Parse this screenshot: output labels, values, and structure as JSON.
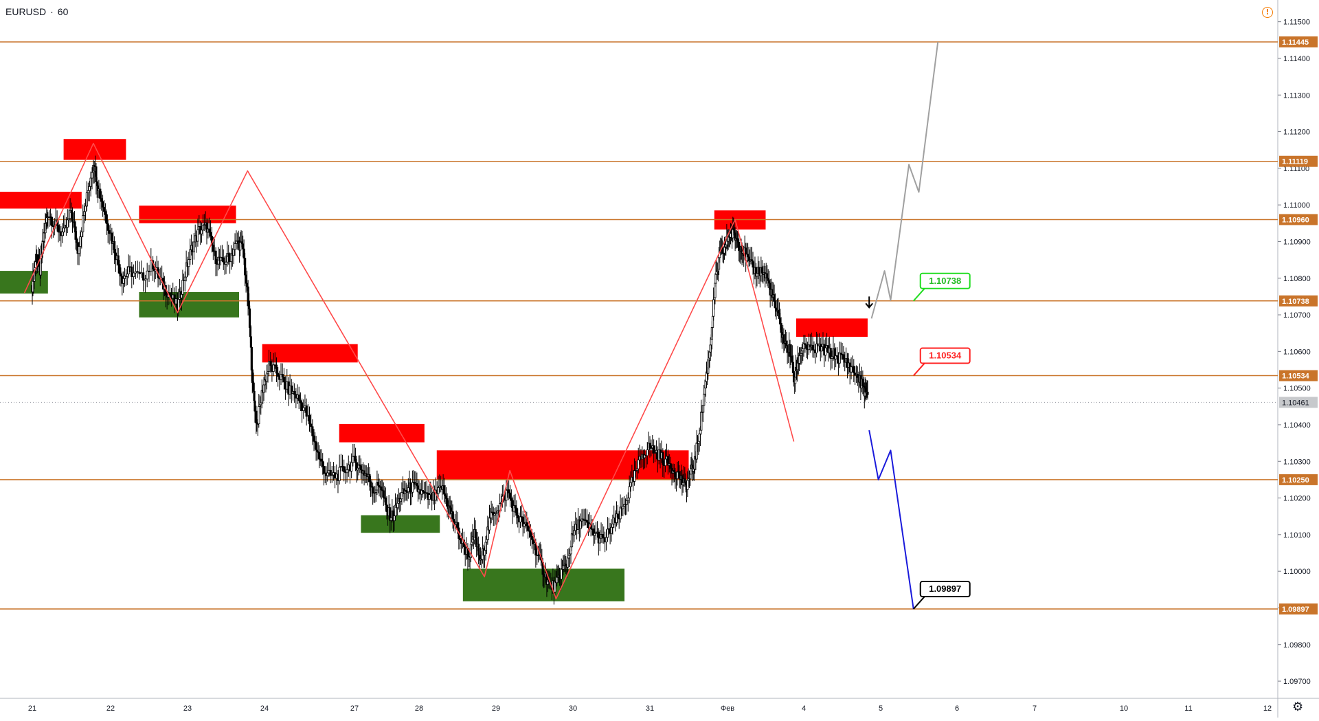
{
  "symbol": {
    "pair": "EURUSD",
    "interval": "60",
    "separator": "·"
  },
  "colors": {
    "level": "#c9742a",
    "level_label_bg": "#c9742a",
    "supply": "#ff0000",
    "demand": "#38761d",
    "zigzag": "#ff4a4a",
    "bull_path": "#a0a0a0",
    "bear_path": "#1a1adb",
    "candle": "#000000",
    "current_price_bg": "#c7c9cc"
  },
  "chart_data": {
    "type": "candlestick",
    "title": "",
    "xlabel": "",
    "ylabel": "",
    "ylim": [
      1.0965,
      1.1155
    ],
    "grid": false,
    "price_ticks": [
      "1.11500",
      "1.11400",
      "1.11300",
      "1.11200",
      "1.11100",
      "1.11000",
      "1.10900",
      "1.10800",
      "1.10700",
      "1.10600",
      "1.10500",
      "1.10400",
      "1.10300",
      "1.10200",
      "1.10100",
      "1.10000",
      "1.09900",
      "1.09800",
      "1.09700"
    ],
    "time_ticks": [
      {
        "label": "21",
        "day": 0.0
      },
      {
        "label": "22",
        "day": 1.0
      },
      {
        "label": "23",
        "day": 2.0
      },
      {
        "label": "24",
        "day": 3.0
      },
      {
        "label": "27",
        "day": 4.0
      },
      {
        "label": "28",
        "day": 5.0
      },
      {
        "label": "29",
        "day": 6.0
      },
      {
        "label": "30",
        "day": 7.0
      },
      {
        "label": "31",
        "day": 8.0
      },
      {
        "label": "Фев",
        "day": 9.0
      },
      {
        "label": "4",
        "day": 10.0
      },
      {
        "label": "5",
        "day": 11.0
      },
      {
        "label": "6",
        "day": 12.0
      },
      {
        "label": "7",
        "day": 13.0
      },
      {
        "label": "10",
        "day": 14.0
      },
      {
        "label": "11",
        "day": 15.0
      },
      {
        "label": "12",
        "day": 16.0
      }
    ],
    "levels": [
      {
        "price": 1.11445,
        "label": "1.11445"
      },
      {
        "price": 1.11119,
        "label": "1.11119"
      },
      {
        "price": 1.1096,
        "label": "1.10960"
      },
      {
        "price": 1.10738,
        "label": "1.10738"
      },
      {
        "price": 1.10534,
        "label": "1.10534"
      },
      {
        "price": 1.1025,
        "label": "1.10250"
      },
      {
        "price": 1.09897,
        "label": "1.09897"
      }
    ],
    "current_price": {
      "price": 1.10461,
      "label": "1.10461"
    },
    "supply_zones": [
      {
        "day0": -0.45,
        "day1": 0.63,
        "p0": 1.1099,
        "p1": 1.11036
      },
      {
        "day0": 0.4,
        "day1": 1.2,
        "p0": 1.11123,
        "p1": 1.1118
      },
      {
        "day0": 1.37,
        "day1": 2.63,
        "p0": 1.1095,
        "p1": 1.10998
      },
      {
        "day0": 2.97,
        "day1": 4.05,
        "p0": 1.1057,
        "p1": 1.1062
      },
      {
        "day0": 3.83,
        "day1": 5.07,
        "p0": 1.10352,
        "p1": 1.10402
      },
      {
        "day0": 5.23,
        "day1": 8.5,
        "p0": 1.1025,
        "p1": 1.1033
      },
      {
        "day0": 8.83,
        "day1": 9.5,
        "p0": 1.10933,
        "p1": 1.10985
      },
      {
        "day0": 9.9,
        "day1": 10.83,
        "p0": 1.1064,
        "p1": 1.1069
      }
    ],
    "demand_zones": [
      {
        "day0": -0.45,
        "day1": 0.2,
        "p0": 1.10758,
        "p1": 1.1082
      },
      {
        "day0": 1.37,
        "day1": 2.67,
        "p0": 1.10693,
        "p1": 1.10762
      },
      {
        "day0": 4.1,
        "day1": 5.27,
        "p0": 1.10105,
        "p1": 1.10153
      },
      {
        "day0": 5.57,
        "day1": 7.67,
        "p0": 1.09918,
        "p1": 1.10007
      }
    ],
    "zigzag": [
      {
        "day": -0.1,
        "price": 1.1076
      },
      {
        "day": 0.78,
        "price": 1.11168
      },
      {
        "day": 1.87,
        "price": 1.10706
      },
      {
        "day": 2.78,
        "price": 1.11093
      },
      {
        "day": 5.85,
        "price": 1.09985
      },
      {
        "day": 6.18,
        "price": 1.10275
      },
      {
        "day": 6.78,
        "price": 1.09925
      },
      {
        "day": 9.1,
        "price": 1.1096
      },
      {
        "day": 9.87,
        "price": 1.10354
      }
    ],
    "bullish_projection": [
      {
        "day": 10.88,
        "price": 1.1069
      },
      {
        "day": 11.05,
        "price": 1.1082
      },
      {
        "day": 11.13,
        "price": 1.1074
      },
      {
        "day": 11.37,
        "price": 1.1111
      },
      {
        "day": 11.5,
        "price": 1.11035
      },
      {
        "day": 11.75,
        "price": 1.11445
      }
    ],
    "bearish_projection": [
      {
        "day": 10.85,
        "price": 1.10385
      },
      {
        "day": 10.97,
        "price": 1.1025
      },
      {
        "day": 11.13,
        "price": 1.1033
      },
      {
        "day": 11.43,
        "price": 1.09897
      }
    ],
    "callouts": [
      {
        "label": "1.10738",
        "price": 1.10738,
        "day": 11.43,
        "color": "#22dd22"
      },
      {
        "label": "1.10534",
        "price": 1.10534,
        "day": 11.43,
        "color": "#ff2222"
      },
      {
        "label": "1.09897",
        "price": 1.09897,
        "day": 11.43,
        "color": "#000000"
      }
    ],
    "arrow": {
      "day": 10.85,
      "price": 1.1072
    },
    "candles": [
      {
        "day": 0.0,
        "price": 1.1078
      },
      {
        "day": 0.05,
        "price": 1.1086
      },
      {
        "day": 0.1,
        "price": 1.1082
      },
      {
        "day": 0.15,
        "price": 1.1092
      },
      {
        "day": 0.2,
        "price": 1.1098
      },
      {
        "day": 0.3,
        "price": 1.1094
      },
      {
        "day": 0.4,
        "price": 1.1092
      },
      {
        "day": 0.5,
        "price": 1.1098
      },
      {
        "day": 0.58,
        "price": 1.1088
      },
      {
        "day": 0.68,
        "price": 1.11
      },
      {
        "day": 0.78,
        "price": 1.1112
      },
      {
        "day": 0.85,
        "price": 1.1104
      },
      {
        "day": 0.95,
        "price": 1.1096
      },
      {
        "day": 1.05,
        "price": 1.1088
      },
      {
        "day": 1.15,
        "price": 1.108
      },
      {
        "day": 1.25,
        "price": 1.1082
      },
      {
        "day": 1.4,
        "price": 1.108
      },
      {
        "day": 1.55,
        "price": 1.1084
      },
      {
        "day": 1.65,
        "price": 1.1079
      },
      {
        "day": 1.75,
        "price": 1.1076
      },
      {
        "day": 1.87,
        "price": 1.1072
      },
      {
        "day": 1.95,
        "price": 1.108
      },
      {
        "day": 2.05,
        "price": 1.1088
      },
      {
        "day": 2.15,
        "price": 1.1093
      },
      {
        "day": 2.25,
        "price": 1.1094
      },
      {
        "day": 2.35,
        "price": 1.1086
      },
      {
        "day": 2.45,
        "price": 1.1084
      },
      {
        "day": 2.55,
        "price": 1.1086
      },
      {
        "day": 2.65,
        "price": 1.109
      },
      {
        "day": 2.72,
        "price": 1.1088
      },
      {
        "day": 2.8,
        "price": 1.107
      },
      {
        "day": 2.85,
        "price": 1.105
      },
      {
        "day": 2.9,
        "price": 1.104
      },
      {
        "day": 2.98,
        "price": 1.105
      },
      {
        "day": 3.05,
        "price": 1.1056
      },
      {
        "day": 3.15,
        "price": 1.1054
      },
      {
        "day": 3.25,
        "price": 1.105
      },
      {
        "day": 3.35,
        "price": 1.1048
      },
      {
        "day": 3.45,
        "price": 1.1044
      },
      {
        "day": 3.55,
        "price": 1.1036
      },
      {
        "day": 3.62,
        "price": 1.103
      },
      {
        "day": 3.7,
        "price": 1.1026
      },
      {
        "day": 3.8,
        "price": 1.1026
      },
      {
        "day": 3.9,
        "price": 1.1028
      },
      {
        "day": 4.0,
        "price": 1.103
      },
      {
        "day": 4.1,
        "price": 1.1028
      },
      {
        "day": 4.2,
        "price": 1.1026
      },
      {
        "day": 4.3,
        "price": 1.1022
      },
      {
        "day": 4.4,
        "price": 1.1024
      },
      {
        "day": 4.5,
        "price": 1.1016
      },
      {
        "day": 4.6,
        "price": 1.1015
      },
      {
        "day": 4.7,
        "price": 1.102
      },
      {
        "day": 4.8,
        "price": 1.1022
      },
      {
        "day": 4.9,
        "price": 1.1023
      },
      {
        "day": 5.0,
        "price": 1.1022
      },
      {
        "day": 5.1,
        "price": 1.102
      },
      {
        "day": 5.2,
        "price": 1.102
      },
      {
        "day": 5.3,
        "price": 1.1023
      },
      {
        "day": 5.38,
        "price": 1.1018
      },
      {
        "day": 5.45,
        "price": 1.1014
      },
      {
        "day": 5.55,
        "price": 1.1008
      },
      {
        "day": 5.65,
        "price": 1.1004
      },
      {
        "day": 5.72,
        "price": 1.101
      },
      {
        "day": 5.8,
        "price": 1.1002
      },
      {
        "day": 5.88,
        "price": 1.101
      },
      {
        "day": 5.95,
        "price": 1.1016
      },
      {
        "day": 6.05,
        "price": 1.1018
      },
      {
        "day": 6.15,
        "price": 1.1022
      },
      {
        "day": 6.25,
        "price": 1.1016
      },
      {
        "day": 6.35,
        "price": 1.1013
      },
      {
        "day": 6.45,
        "price": 1.101
      },
      {
        "day": 6.55,
        "price": 1.1004
      },
      {
        "day": 6.62,
        "price": 1.1
      },
      {
        "day": 6.7,
        "price": 1.0996
      },
      {
        "day": 6.78,
        "price": 1.0996
      },
      {
        "day": 6.85,
        "price": 1.1
      },
      {
        "day": 6.92,
        "price": 1.1002
      },
      {
        "day": 7.0,
        "price": 1.101
      },
      {
        "day": 7.1,
        "price": 1.1014
      },
      {
        "day": 7.2,
        "price": 1.1012
      },
      {
        "day": 7.3,
        "price": 1.101
      },
      {
        "day": 7.4,
        "price": 1.1008
      },
      {
        "day": 7.5,
        "price": 1.1012
      },
      {
        "day": 7.6,
        "price": 1.1015
      },
      {
        "day": 7.7,
        "price": 1.102
      },
      {
        "day": 7.8,
        "price": 1.1026
      },
      {
        "day": 7.9,
        "price": 1.1032
      },
      {
        "day": 8.0,
        "price": 1.1034
      },
      {
        "day": 8.1,
        "price": 1.1032
      },
      {
        "day": 8.2,
        "price": 1.103
      },
      {
        "day": 8.3,
        "price": 1.1028
      },
      {
        "day": 8.38,
        "price": 1.1026
      },
      {
        "day": 8.45,
        "price": 1.1023
      },
      {
        "day": 8.52,
        "price": 1.1026
      },
      {
        "day": 8.58,
        "price": 1.103
      },
      {
        "day": 8.65,
        "price": 1.104
      },
      {
        "day": 8.72,
        "price": 1.1052
      },
      {
        "day": 8.78,
        "price": 1.1062
      },
      {
        "day": 8.84,
        "price": 1.1078
      },
      {
        "day": 8.9,
        "price": 1.1086
      },
      {
        "day": 8.96,
        "price": 1.1088
      },
      {
        "day": 9.02,
        "price": 1.1092
      },
      {
        "day": 9.08,
        "price": 1.1092
      },
      {
        "day": 9.14,
        "price": 1.109
      },
      {
        "day": 9.2,
        "price": 1.1088
      },
      {
        "day": 9.28,
        "price": 1.1084
      },
      {
        "day": 9.36,
        "price": 1.1082
      },
      {
        "day": 9.44,
        "price": 1.1082
      },
      {
        "day": 9.52,
        "price": 1.108
      },
      {
        "day": 9.6,
        "price": 1.1074
      },
      {
        "day": 9.68,
        "price": 1.1068
      },
      {
        "day": 9.75,
        "price": 1.1062
      },
      {
        "day": 9.82,
        "price": 1.106
      },
      {
        "day": 9.88,
        "price": 1.1052
      },
      {
        "day": 9.93,
        "price": 1.1058
      },
      {
        "day": 10.0,
        "price": 1.1062
      },
      {
        "day": 10.1,
        "price": 1.106
      },
      {
        "day": 10.2,
        "price": 1.1061
      },
      {
        "day": 10.3,
        "price": 1.106
      },
      {
        "day": 10.4,
        "price": 1.1059
      },
      {
        "day": 10.5,
        "price": 1.1058
      },
      {
        "day": 10.6,
        "price": 1.1056
      },
      {
        "day": 10.7,
        "price": 1.1053
      },
      {
        "day": 10.78,
        "price": 1.105
      },
      {
        "day": 10.83,
        "price": 1.1047
      }
    ]
  }
}
